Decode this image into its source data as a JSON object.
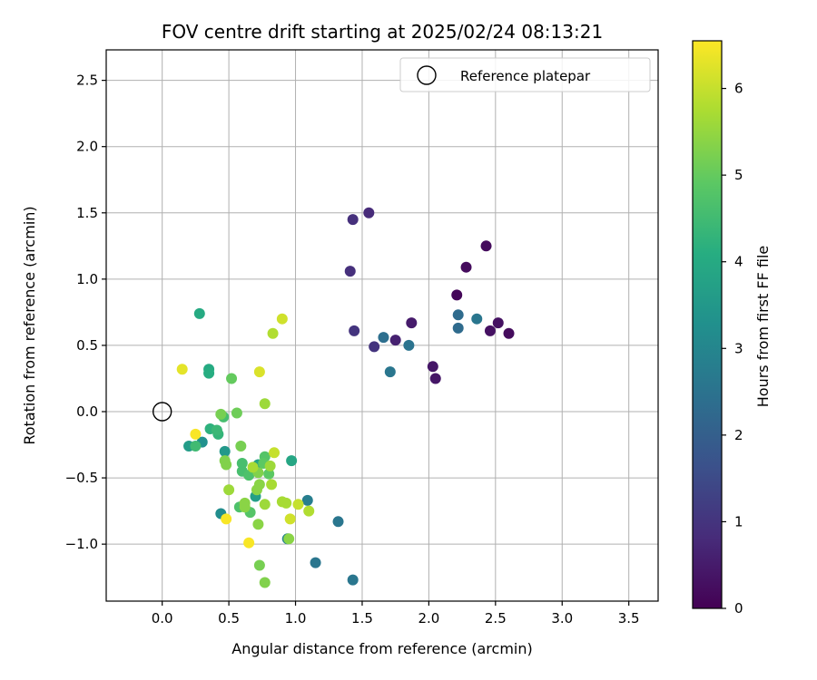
{
  "chart_data": {
    "type": "scatter",
    "title": "FOV centre drift starting at 2025/02/24 08:13:21",
    "xlabel": "Angular distance from reference (arcmin)",
    "ylabel": "Rotation from reference (arcmin)",
    "xlim": [
      -0.42,
      3.72
    ],
    "ylim": [
      -1.43,
      2.73
    ],
    "xticks": [
      0.0,
      0.5,
      1.0,
      1.5,
      2.0,
      2.5,
      3.0,
      3.5
    ],
    "xtick_labels": [
      "0.0",
      "0.5",
      "1.0",
      "1.5",
      "2.0",
      "2.5",
      "3.0",
      "3.5"
    ],
    "yticks": [
      -1.0,
      -0.5,
      0.0,
      0.5,
      1.0,
      1.5,
      2.0,
      2.5
    ],
    "ytick_labels": [
      "−1.0",
      "−0.5",
      "0.0",
      "0.5",
      "1.0",
      "1.5",
      "2.0",
      "2.5"
    ],
    "grid": true,
    "legend": {
      "position": "top-right",
      "entries": [
        "Reference platepar"
      ]
    },
    "reference_point": {
      "x": 0.0,
      "y": 0.0
    },
    "colorbar": {
      "label": "Hours from first FF file",
      "min": 0,
      "max": 6.55,
      "ticks": [
        0,
        1,
        2,
        3,
        4,
        5,
        6
      ],
      "tick_labels": [
        "0",
        "1",
        "2",
        "3",
        "4",
        "5",
        "6"
      ],
      "colormap": "viridis"
    },
    "points": [
      {
        "x": 2.43,
        "y": 1.25,
        "c": 0.2
      },
      {
        "x": 2.28,
        "y": 1.09,
        "c": 0.2
      },
      {
        "x": 2.21,
        "y": 0.88,
        "c": 0.1
      },
      {
        "x": 2.52,
        "y": 0.67,
        "c": 0.3
      },
      {
        "x": 2.46,
        "y": 0.61,
        "c": 0.3
      },
      {
        "x": 2.6,
        "y": 0.59,
        "c": 0.2
      },
      {
        "x": 2.03,
        "y": 0.34,
        "c": 0.4
      },
      {
        "x": 2.05,
        "y": 0.25,
        "c": 0.4
      },
      {
        "x": 1.87,
        "y": 0.67,
        "c": 0.5
      },
      {
        "x": 1.75,
        "y": 0.54,
        "c": 0.6
      },
      {
        "x": 1.55,
        "y": 1.5,
        "c": 0.8
      },
      {
        "x": 1.43,
        "y": 1.45,
        "c": 0.9
      },
      {
        "x": 1.41,
        "y": 1.06,
        "c": 0.9
      },
      {
        "x": 1.44,
        "y": 0.61,
        "c": 1.0
      },
      {
        "x": 1.59,
        "y": 0.49,
        "c": 1.0
      },
      {
        "x": 2.22,
        "y": 0.73,
        "c": 2.3
      },
      {
        "x": 2.22,
        "y": 0.63,
        "c": 2.3
      },
      {
        "x": 2.36,
        "y": 0.7,
        "c": 2.6
      },
      {
        "x": 1.66,
        "y": 0.56,
        "c": 2.4
      },
      {
        "x": 1.85,
        "y": 0.5,
        "c": 2.5
      },
      {
        "x": 1.71,
        "y": 0.3,
        "c": 2.6
      },
      {
        "x": 1.32,
        "y": -0.83,
        "c": 2.6
      },
      {
        "x": 1.15,
        "y": -1.14,
        "c": 2.6
      },
      {
        "x": 1.43,
        "y": -1.27,
        "c": 2.6
      },
      {
        "x": 1.09,
        "y": -0.67,
        "c": 2.8
      },
      {
        "x": 0.94,
        "y": -0.96,
        "c": 2.9
      },
      {
        "x": 0.44,
        "y": -0.77,
        "c": 3.2
      },
      {
        "x": 0.3,
        "y": -0.23,
        "c": 3.3
      },
      {
        "x": 0.47,
        "y": -0.3,
        "c": 3.5
      },
      {
        "x": 0.2,
        "y": -0.26,
        "c": 3.6
      },
      {
        "x": 0.7,
        "y": -0.64,
        "c": 3.7
      },
      {
        "x": 0.72,
        "y": -0.4,
        "c": 3.8
      },
      {
        "x": 0.97,
        "y": -0.37,
        "c": 3.9
      },
      {
        "x": 0.28,
        "y": 0.74,
        "c": 4.0
      },
      {
        "x": 0.35,
        "y": 0.32,
        "c": 4.0
      },
      {
        "x": 0.35,
        "y": 0.29,
        "c": 4.1
      },
      {
        "x": 0.36,
        "y": -0.13,
        "c": 4.2
      },
      {
        "x": 0.42,
        "y": -0.17,
        "c": 4.3
      },
      {
        "x": 0.41,
        "y": -0.14,
        "c": 4.4
      },
      {
        "x": 0.25,
        "y": -0.26,
        "c": 4.5
      },
      {
        "x": 0.46,
        "y": -0.04,
        "c": 4.6
      },
      {
        "x": 0.6,
        "y": -0.39,
        "c": 4.6
      },
      {
        "x": 0.6,
        "y": -0.45,
        "c": 4.6
      },
      {
        "x": 0.65,
        "y": -0.48,
        "c": 4.7
      },
      {
        "x": 0.58,
        "y": -0.72,
        "c": 4.7
      },
      {
        "x": 0.66,
        "y": -0.76,
        "c": 4.8
      },
      {
        "x": 0.77,
        "y": -0.34,
        "c": 4.8
      },
      {
        "x": 0.76,
        "y": -0.39,
        "c": 4.9
      },
      {
        "x": 0.8,
        "y": -0.47,
        "c": 4.9
      },
      {
        "x": 0.52,
        "y": 0.25,
        "c": 5.0
      },
      {
        "x": 0.56,
        "y": -0.01,
        "c": 5.1
      },
      {
        "x": 0.44,
        "y": -0.02,
        "c": 5.2
      },
      {
        "x": 0.59,
        "y": -0.26,
        "c": 5.2
      },
      {
        "x": 0.47,
        "y": -0.37,
        "c": 5.3
      },
      {
        "x": 0.48,
        "y": -0.4,
        "c": 5.3
      },
      {
        "x": 0.72,
        "y": -0.46,
        "c": 5.3
      },
      {
        "x": 0.73,
        "y": -0.55,
        "c": 5.4
      },
      {
        "x": 0.71,
        "y": -0.59,
        "c": 5.4
      },
      {
        "x": 0.62,
        "y": -0.69,
        "c": 5.4
      },
      {
        "x": 0.62,
        "y": -0.72,
        "c": 5.4
      },
      {
        "x": 0.72,
        "y": -0.85,
        "c": 5.4
      },
      {
        "x": 0.73,
        "y": -1.16,
        "c": 5.2
      },
      {
        "x": 0.77,
        "y": -1.29,
        "c": 5.3
      },
      {
        "x": 0.95,
        "y": -0.96,
        "c": 5.4
      },
      {
        "x": 0.81,
        "y": -0.41,
        "c": 5.6
      },
      {
        "x": 0.82,
        "y": -0.55,
        "c": 5.7
      },
      {
        "x": 0.5,
        "y": -0.59,
        "c": 5.6
      },
      {
        "x": 0.68,
        "y": -0.42,
        "c": 5.7
      },
      {
        "x": 0.77,
        "y": -0.7,
        "c": 5.6
      },
      {
        "x": 0.9,
        "y": -0.68,
        "c": 5.7
      },
      {
        "x": 0.93,
        "y": -0.69,
        "c": 5.7
      },
      {
        "x": 1.1,
        "y": -0.75,
        "c": 5.8
      },
      {
        "x": 0.77,
        "y": 0.06,
        "c": 5.6
      },
      {
        "x": 0.83,
        "y": 0.59,
        "c": 5.8
      },
      {
        "x": 0.84,
        "y": -0.31,
        "c": 6.0
      },
      {
        "x": 0.9,
        "y": 0.7,
        "c": 6.1
      },
      {
        "x": 0.73,
        "y": 0.3,
        "c": 6.2
      },
      {
        "x": 0.15,
        "y": 0.32,
        "c": 6.3
      },
      {
        "x": 0.96,
        "y": -0.81,
        "c": 6.1
      },
      {
        "x": 1.02,
        "y": -0.7,
        "c": 6.0
      },
      {
        "x": 0.25,
        "y": -0.17,
        "c": 6.5
      },
      {
        "x": 0.48,
        "y": -0.81,
        "c": 6.5
      },
      {
        "x": 0.65,
        "y": -0.99,
        "c": 6.5
      }
    ]
  }
}
